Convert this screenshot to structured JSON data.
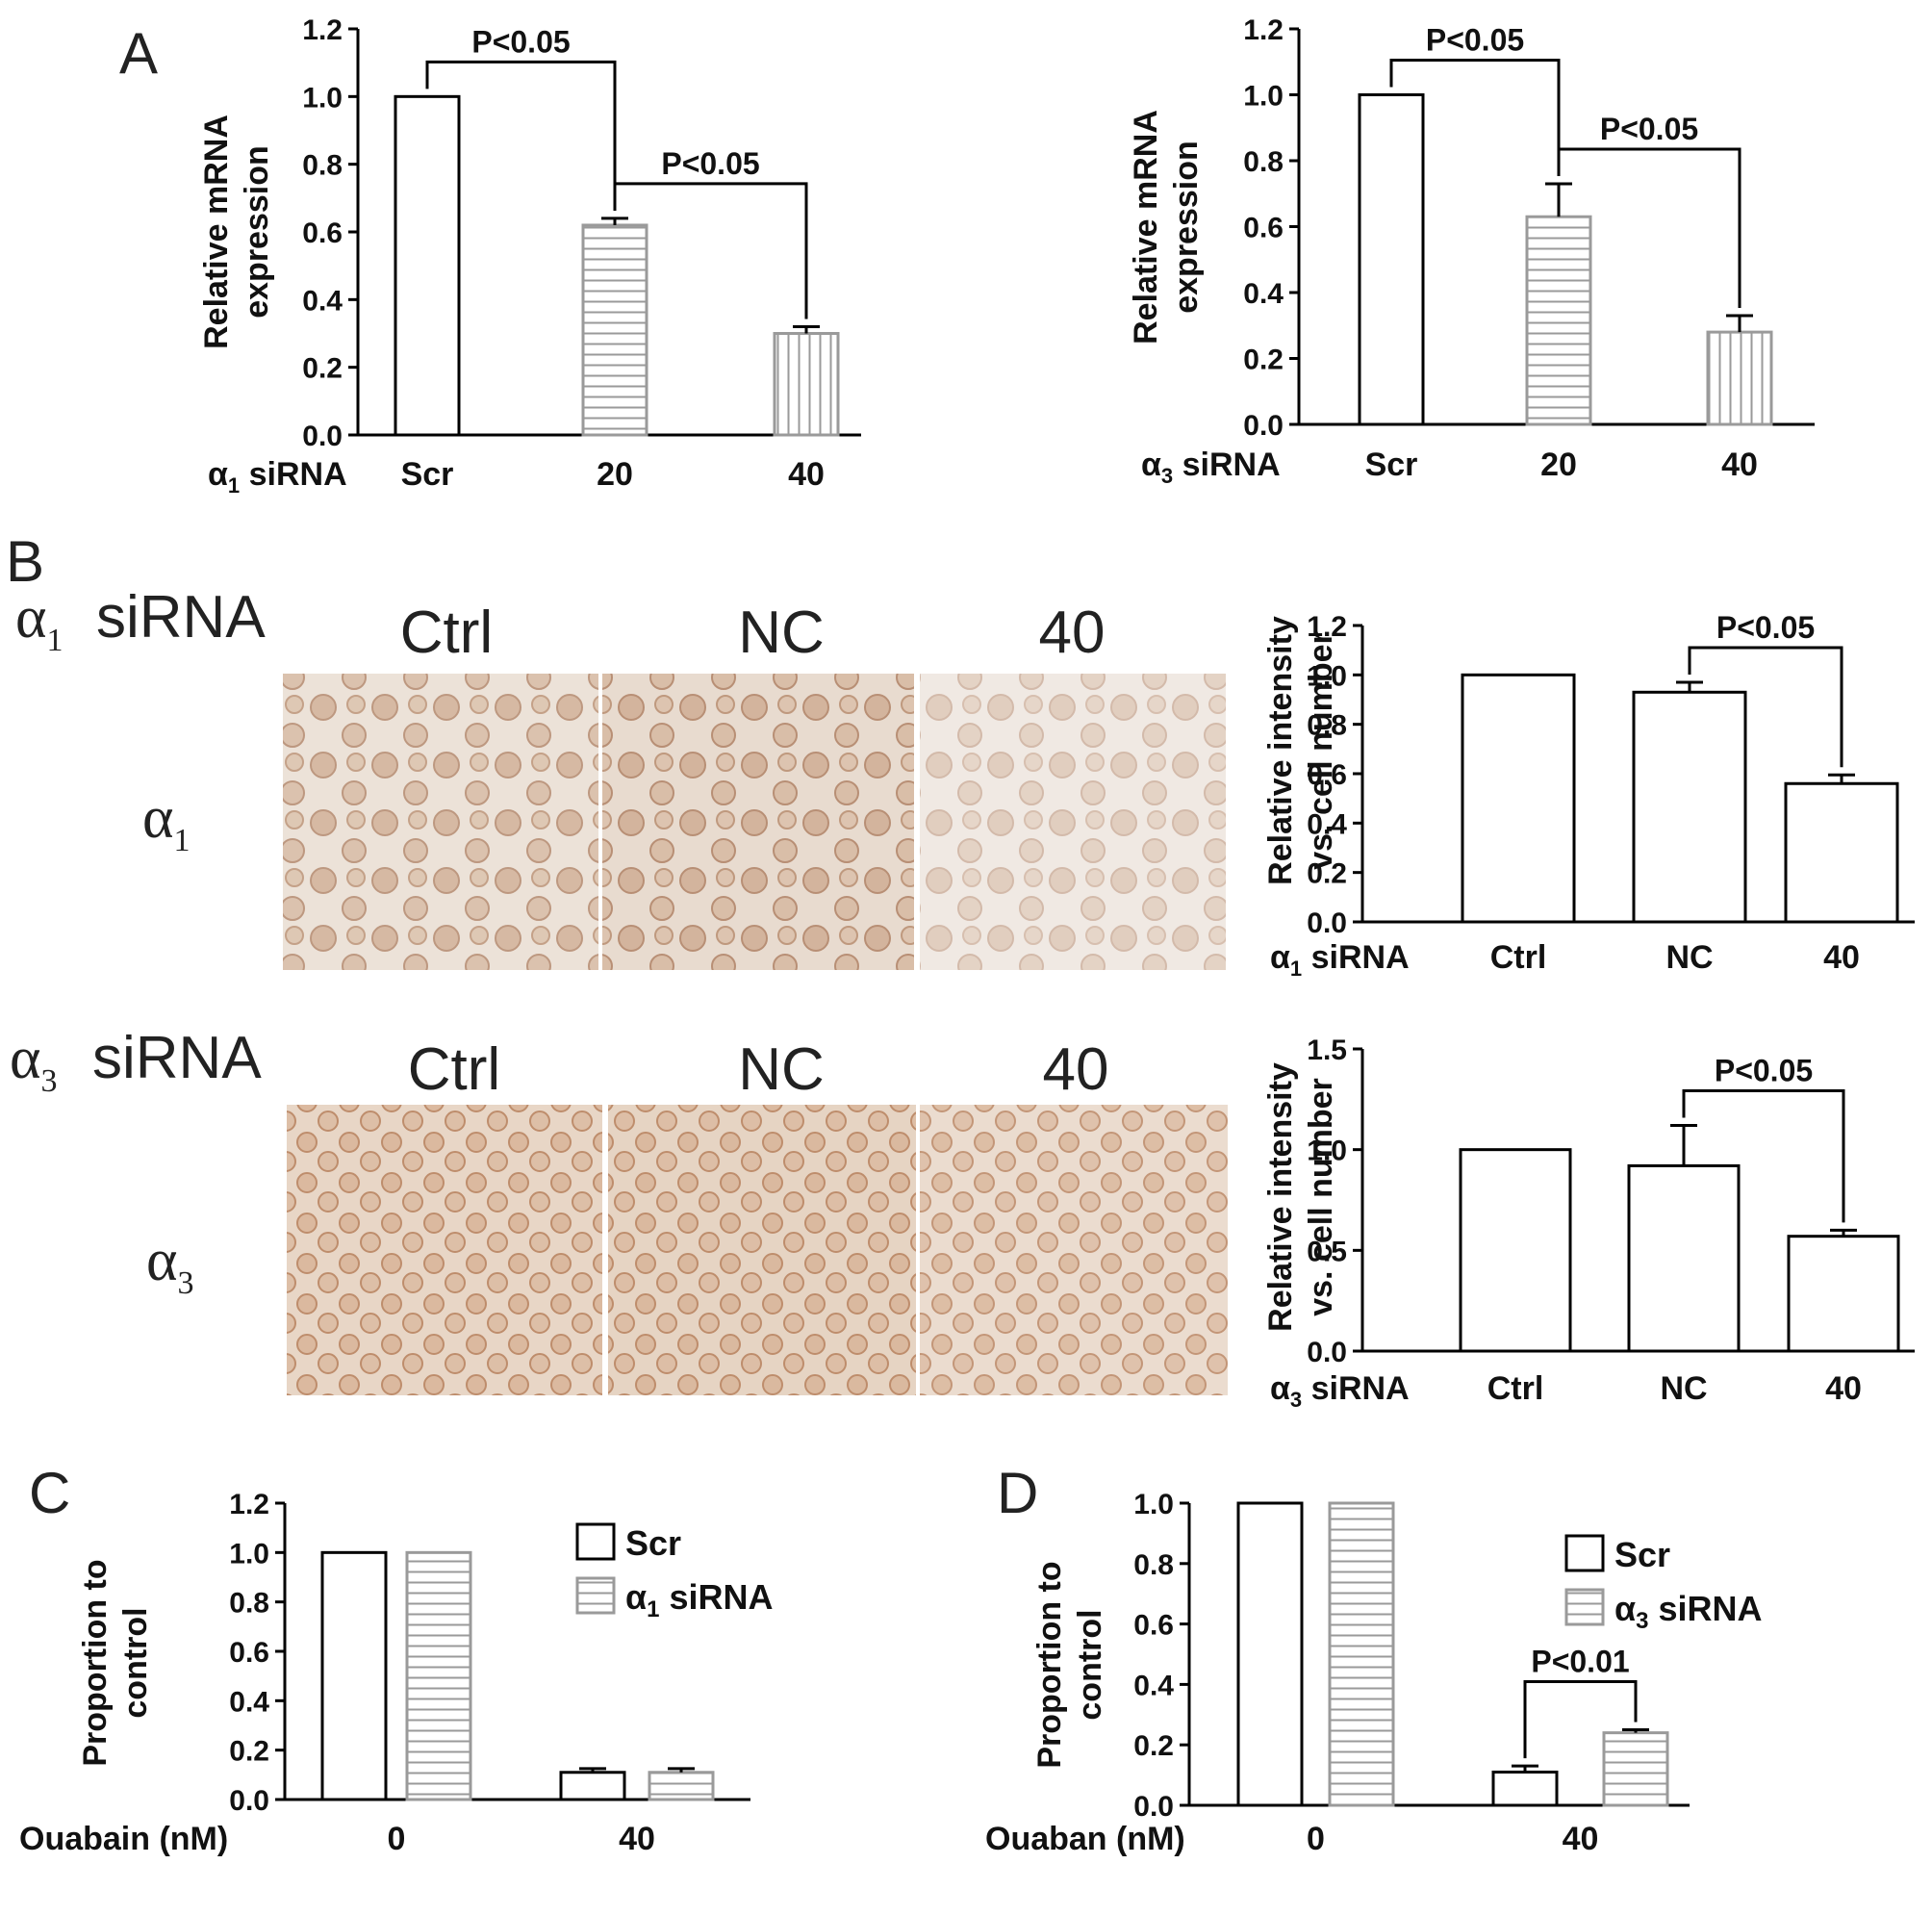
{
  "panel_labels": {
    "A": "A",
    "B": "B",
    "C": "C",
    "D": "D"
  },
  "panel_b": {
    "row1_label": "siRNA",
    "row2_label": "siRNA",
    "greek_alpha": "α",
    "row1_sub": "1",
    "row2_sub": "3",
    "columns": [
      "Ctrl",
      "NC",
      "40"
    ],
    "image_colors": {
      "row1": "#e9ddd2",
      "row2": "#e6d3c1",
      "cell": "#c59a7d"
    }
  },
  "colors": {
    "bar_fill": "#ffffff",
    "bar_edge": "#000000",
    "hatch": "#9a9a9a",
    "axis": "#000000"
  },
  "chart_data": [
    {
      "id": "A1",
      "type": "bar",
      "categories": [
        "Scr",
        "20",
        "40"
      ],
      "values": [
        1.0,
        0.62,
        0.3
      ],
      "errors": [
        0,
        0.02,
        0.02
      ],
      "patterns": [
        "none",
        "horizontal",
        "vertical"
      ],
      "ylabel": [
        "Relative mRNA",
        "expression"
      ],
      "xlabel": "siRNA",
      "xlabel_sub": "1",
      "ylim": [
        0,
        1.2
      ],
      "yticks": [
        "0.0",
        "0.2",
        "0.4",
        "0.6",
        "0.8",
        "1.0",
        "1.2"
      ],
      "annotations": [
        {
          "from": 0,
          "to": 1,
          "text": "P<0.05"
        },
        {
          "from": 1,
          "to": 2,
          "text": "P<0.05"
        }
      ]
    },
    {
      "id": "A3",
      "type": "bar",
      "categories": [
        "Scr",
        "20",
        "40"
      ],
      "values": [
        1.0,
        0.63,
        0.28
      ],
      "errors": [
        0,
        0.1,
        0.05
      ],
      "patterns": [
        "none",
        "horizontal",
        "vertical"
      ],
      "ylabel": [
        "Relative mRNA",
        "expression"
      ],
      "xlabel": "siRNA",
      "xlabel_sub": "3",
      "ylim": [
        0,
        1.2
      ],
      "yticks": [
        "0.0",
        "0.2",
        "0.4",
        "0.6",
        "0.8",
        "1.0",
        "1.2"
      ],
      "annotations": [
        {
          "from": 0,
          "to": 1,
          "text": "P<0.05"
        },
        {
          "from": 1,
          "to": 2,
          "text": "P<0.05"
        }
      ]
    },
    {
      "id": "B1",
      "type": "bar",
      "categories": [
        "Ctrl",
        "NC",
        "40"
      ],
      "values": [
        1.0,
        0.93,
        0.56
      ],
      "errors": [
        0,
        0.04,
        0.035
      ],
      "patterns": [
        "none",
        "none",
        "none"
      ],
      "ylabel": [
        "Relative intensity",
        "vs. cell number"
      ],
      "xlabel": "siRNA",
      "xlabel_sub": "1",
      "ylim": [
        0,
        1.2
      ],
      "yticks": [
        "0.0",
        "0.2",
        "0.4",
        "0.6",
        "0.8",
        "1.0",
        "1.2"
      ],
      "annotations": [
        {
          "from": 1,
          "to": 2,
          "text": "P<0.05"
        }
      ]
    },
    {
      "id": "B3",
      "type": "bar",
      "categories": [
        "Ctrl",
        "NC",
        "40"
      ],
      "values": [
        1.0,
        0.92,
        0.57
      ],
      "errors": [
        0,
        0.2,
        0.03
      ],
      "patterns": [
        "none",
        "none",
        "none"
      ],
      "ylabel": [
        "Relative intensity",
        "vs. cell number"
      ],
      "xlabel": "siRNA",
      "xlabel_sub": "3",
      "ylim": [
        0,
        1.5
      ],
      "yticks": [
        "0.0",
        "0.5",
        "1.0",
        "1.5"
      ],
      "annotations": [
        {
          "from": 1,
          "to": 2,
          "text": "P<0.05"
        }
      ]
    },
    {
      "id": "C",
      "type": "bar",
      "categories": [
        "0",
        "40"
      ],
      "series": [
        {
          "name": "Scr",
          "values": [
            1.0,
            0.11
          ],
          "errors": [
            0,
            0.015
          ],
          "pattern": "none"
        },
        {
          "name": "siRNA",
          "name_sub": "1",
          "values": [
            1.0,
            0.11
          ],
          "errors": [
            0,
            0.015
          ],
          "pattern": "horizontal"
        }
      ],
      "ylabel": [
        "Proportion to",
        "control"
      ],
      "xlabel": "Ouabain (nM)",
      "ylim": [
        0,
        1.2
      ],
      "yticks": [
        "0.0",
        "0.2",
        "0.4",
        "0.6",
        "0.8",
        "1.0",
        "1.2"
      ],
      "annotations": []
    },
    {
      "id": "D",
      "type": "bar",
      "categories": [
        "0",
        "40"
      ],
      "series": [
        {
          "name": "Scr",
          "values": [
            1.0,
            0.11
          ],
          "errors": [
            0,
            0.02
          ],
          "pattern": "none"
        },
        {
          "name": "siRNA",
          "name_sub": "3",
          "values": [
            1.0,
            0.24
          ],
          "errors": [
            0,
            0.01
          ],
          "pattern": "horizontal"
        }
      ],
      "ylabel": [
        "Proportion to",
        "control"
      ],
      "xlabel": "Ouaban (nM)",
      "ylim": [
        0,
        1.0
      ],
      "yticks": [
        "0.0",
        "0.2",
        "0.4",
        "0.6",
        "0.8",
        "1.0"
      ],
      "annotations": [
        {
          "from": 0,
          "to": 1,
          "group": 1,
          "text": "P<0.01"
        }
      ]
    }
  ]
}
